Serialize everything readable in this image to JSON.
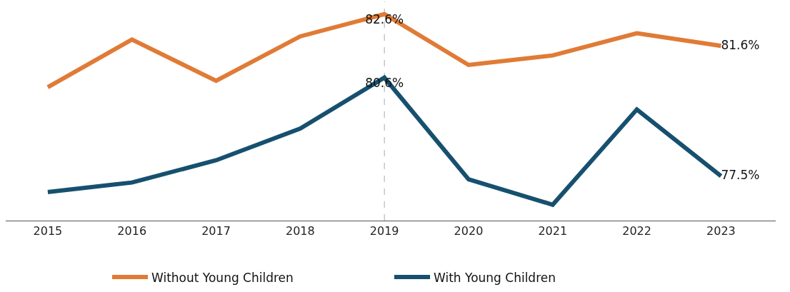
{
  "chart_data": {
    "type": "line",
    "categories": [
      "2015",
      "2016",
      "2017",
      "2018",
      "2019",
      "2020",
      "2021",
      "2022",
      "2023"
    ],
    "ylim": [
      76.1,
      83.0
    ],
    "grid": false,
    "legend": "bottom",
    "marker": "none",
    "line_style": "solid",
    "tick_labels": "x",
    "series": [
      {
        "name": "Without Young Children",
        "color": "#e07b36",
        "values": [
          80.3,
          81.8,
          80.5,
          81.9,
          82.6,
          81.0,
          81.3,
          82.0,
          81.6
        ],
        "value_labels": [
          null,
          null,
          null,
          null,
          "82.6%",
          null,
          null,
          null,
          "81.6%"
        ]
      },
      {
        "name": "With Young Children",
        "color": "#17506f",
        "values": [
          77.0,
          77.3,
          78.0,
          79.0,
          80.6,
          77.4,
          76.6,
          79.6,
          77.5
        ],
        "value_labels": [
          null,
          null,
          null,
          null,
          "80.6%",
          null,
          null,
          null,
          "77.5%"
        ]
      }
    ],
    "ref_lines": [
      {
        "axis": "x",
        "value": "2019",
        "color": "#aaaaaa",
        "line_style": "dashed"
      }
    ]
  }
}
